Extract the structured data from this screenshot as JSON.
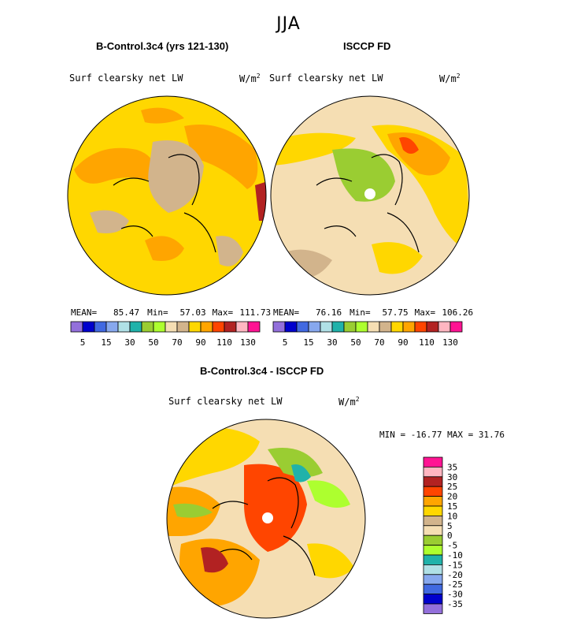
{
  "figure": {
    "title": "JJA"
  },
  "panels": [
    {
      "title": "B-Control.3c4 (yrs 121-130)",
      "variable": "Surf clearsky net LW",
      "units_base": "W/m",
      "units_exp": "2",
      "stats": {
        "mean_label": "MEAN=",
        "mean": "85.47",
        "min_label": "Min=",
        "min": "57.03",
        "max_label": "Max=",
        "max": "111.73"
      }
    },
    {
      "title": "ISCCP FD",
      "variable": "Surf clearsky net LW",
      "units_base": "W/m",
      "units_exp": "2",
      "stats": {
        "mean_label": "MEAN=",
        "mean": "76.16",
        "min_label": "Min=",
        "min": "57.75",
        "max_label": "Max=",
        "max": "106.26"
      }
    },
    {
      "title": "B-Control.3c4 - ISCCP FD",
      "variable": "Surf clearsky net LW",
      "units_base": "W/m",
      "units_exp": "2",
      "stats_line": "MIN = -16.77 MAX =  31.76"
    }
  ],
  "chart_data": [
    {
      "type": "heatmap",
      "title": "B-Control.3c4 (yrs 121-130)",
      "projection": "north-polar-stereographic",
      "mean": 85.47,
      "min": 57.03,
      "max": 111.73
    },
    {
      "type": "heatmap",
      "title": "ISCCP FD",
      "projection": "north-polar-stereographic",
      "mean": 76.16,
      "min": 57.75,
      "max": 106.26
    },
    {
      "type": "heatmap",
      "title": "B-Control.3c4 - ISCCP FD",
      "projection": "north-polar-stereographic",
      "min": -16.77,
      "max": 31.76
    }
  ],
  "colorbars": {
    "absolute": {
      "colors": [
        "#9370db",
        "#0000cd",
        "#4169e1",
        "#87a8ee",
        "#b0e0e6",
        "#20b2aa",
        "#9acd32",
        "#adff2f",
        "#f5deb3",
        "#d2b48c",
        "#ffd700",
        "#ffa500",
        "#ff4500",
        "#b22222",
        "#ffb6c1",
        "#ff1493"
      ],
      "tick_labels": [
        "5",
        "15",
        "30",
        "50",
        "70",
        "90",
        "110",
        "130"
      ]
    },
    "difference": {
      "colors": [
        "#ff1493",
        "#ffb6c1",
        "#b22222",
        "#ff4500",
        "#ffa500",
        "#ffd700",
        "#d2b48c",
        "#f5deb3",
        "#9acd32",
        "#adff2f",
        "#20b2aa",
        "#b0e0e6",
        "#87a8ee",
        "#4169e1",
        "#0000cd",
        "#9370db"
      ],
      "tick_labels": [
        "35",
        "30",
        "25",
        "20",
        "15",
        "10",
        "5",
        "0",
        "-5",
        "-10",
        "-15",
        "-20",
        "-25",
        "-30",
        "-35"
      ]
    }
  }
}
